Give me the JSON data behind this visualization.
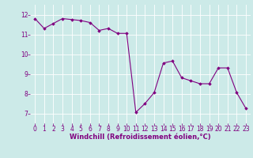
{
  "x": [
    0,
    1,
    2,
    3,
    4,
    5,
    6,
    7,
    8,
    9,
    10,
    11,
    12,
    13,
    14,
    15,
    16,
    17,
    18,
    19,
    20,
    21,
    22,
    23
  ],
  "y": [
    11.8,
    11.3,
    11.55,
    11.8,
    11.75,
    11.7,
    11.6,
    11.2,
    11.3,
    11.05,
    11.05,
    7.05,
    7.5,
    8.05,
    9.55,
    9.65,
    8.8,
    8.65,
    8.5,
    8.5,
    9.3,
    9.3,
    8.05,
    7.25
  ],
  "line_color": "#800080",
  "marker": "D",
  "marker_size": 1.8,
  "bg_color": "#cceae8",
  "grid_color": "#ffffff",
  "xlabel": "Windchill (Refroidissement éolien,°C)",
  "xlabel_color": "#800080",
  "tick_color": "#800080",
  "ylim": [
    6.5,
    12.5
  ],
  "xlim": [
    -0.5,
    23.5
  ],
  "yticks": [
    7,
    8,
    9,
    10,
    11,
    12
  ],
  "xticks": [
    0,
    1,
    2,
    3,
    4,
    5,
    6,
    7,
    8,
    9,
    10,
    11,
    12,
    13,
    14,
    15,
    16,
    17,
    18,
    19,
    20,
    21,
    22,
    23
  ],
  "tick_fontsize": 5.5,
  "xlabel_fontsize": 6.0,
  "linewidth": 0.8
}
